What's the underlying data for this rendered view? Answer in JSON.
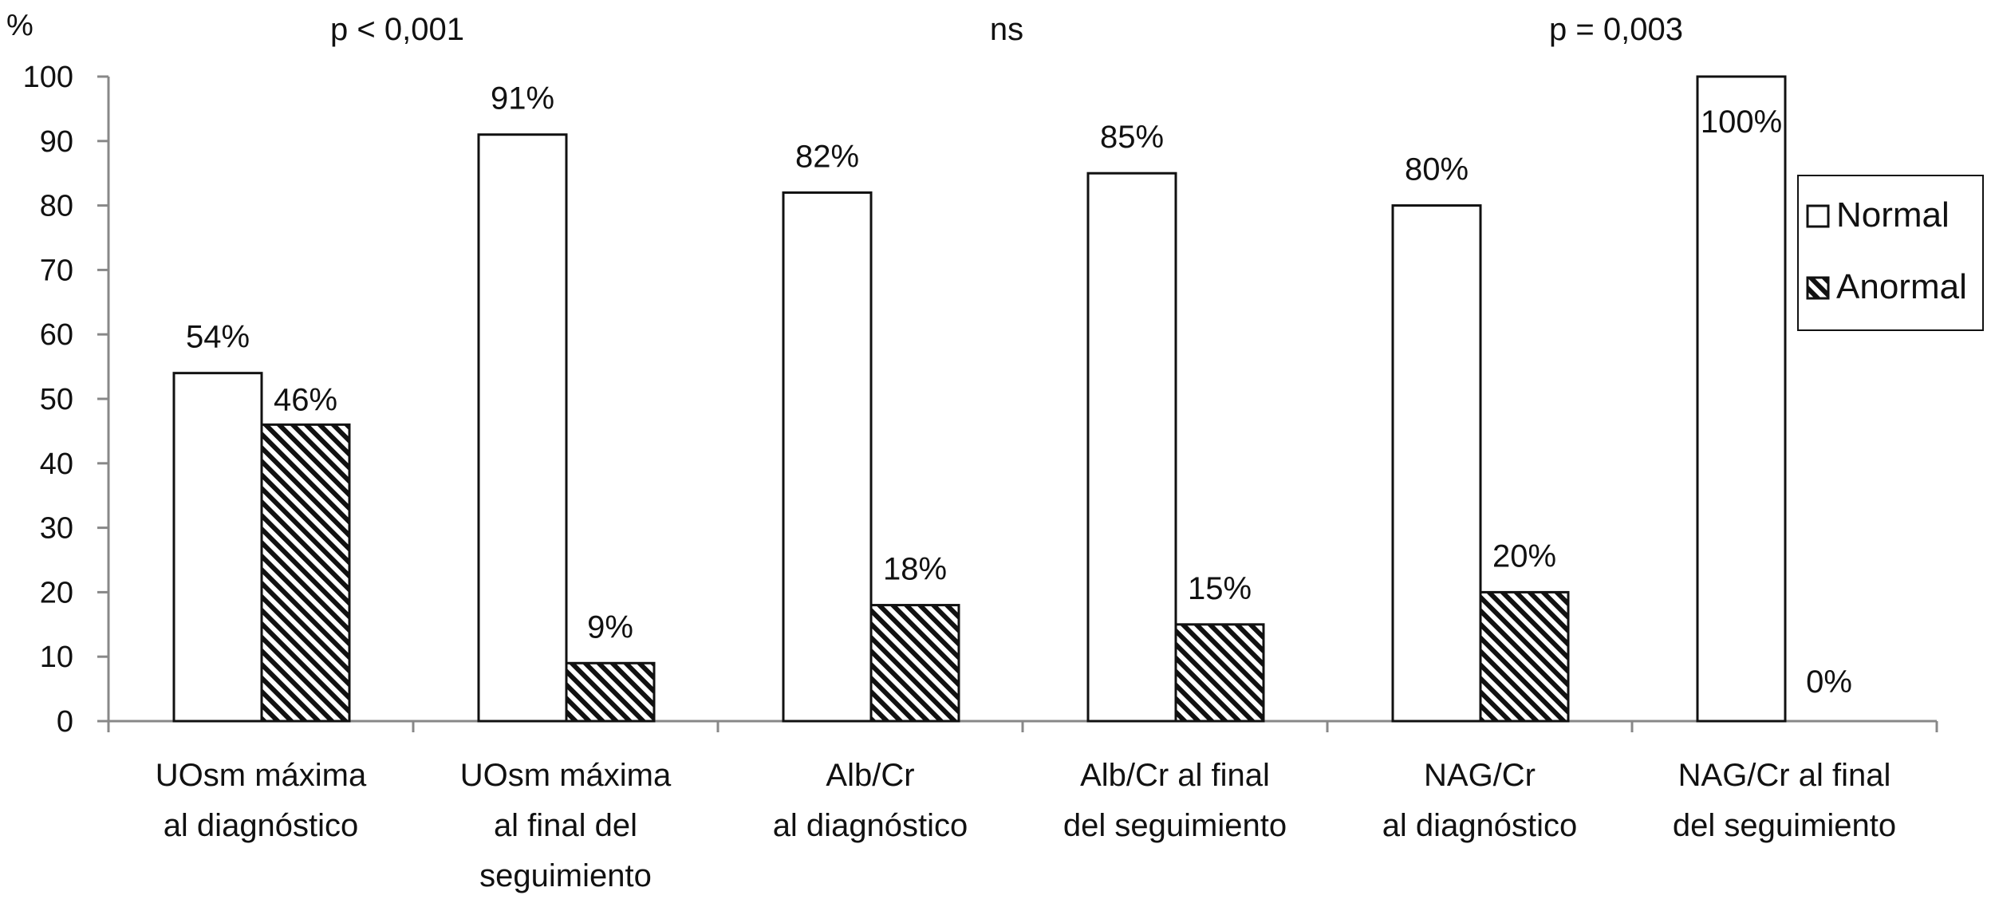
{
  "chart_data": {
    "type": "bar",
    "ylabel": "%",
    "ylim": [
      0,
      100
    ],
    "yticks": [
      0,
      10,
      20,
      30,
      40,
      50,
      60,
      70,
      80,
      90,
      100
    ],
    "grid": false,
    "legend_position": "right",
    "categories": [
      [
        "UOsm máxima",
        "al diagnóstico"
      ],
      [
        "UOsm máxima",
        "al final del",
        "seguimiento"
      ],
      [
        "Alb/Cr",
        "al diagnóstico"
      ],
      [
        "Alb/Cr al final",
        "del seguimiento"
      ],
      [
        "NAG/Cr",
        "al diagnóstico"
      ],
      [
        "NAG/Cr al final",
        "del seguimiento"
      ]
    ],
    "series": [
      {
        "name": "Normal",
        "values": [
          54,
          91,
          82,
          85,
          80,
          100
        ],
        "labels": [
          "54%",
          "91%",
          "82%",
          "85%",
          "80%",
          "100%"
        ],
        "fill": "#ffffff"
      },
      {
        "name": "Anormal",
        "values": [
          46,
          9,
          18,
          15,
          20,
          0
        ],
        "labels": [
          "46%",
          "9%",
          "18%",
          "15%",
          "20%",
          "0%"
        ],
        "fill": "hatched"
      }
    ],
    "annotations": [
      {
        "text": "p < 0,001",
        "group": [
          0,
          1
        ]
      },
      {
        "text": "ns",
        "group": [
          2,
          3
        ]
      },
      {
        "text": "p = 0,003",
        "group": [
          4,
          5
        ]
      }
    ]
  }
}
